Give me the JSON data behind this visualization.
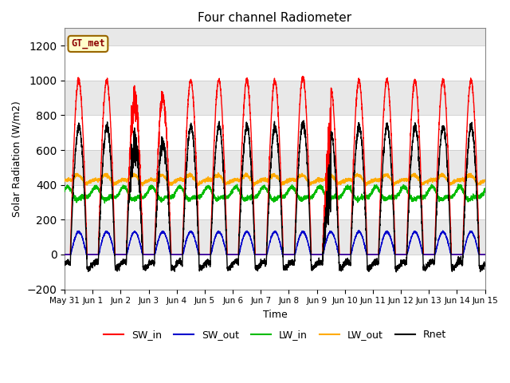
{
  "title": "Four channel Radiometer",
  "xlabel": "Time",
  "ylabel": "Solar Radiation (W/m2)",
  "ylim": [
    -200,
    1300
  ],
  "yticks": [
    -200,
    0,
    200,
    400,
    600,
    800,
    1000,
    1200
  ],
  "n_days": 15,
  "n_points": 4320,
  "SW_in_peak": 1000,
  "SW_out_peak": 130,
  "LW_in_base": 345,
  "LW_in_amp": 30,
  "LW_out_base": 415,
  "LW_out_amp": 50,
  "colors": {
    "SW_in": "#ff0000",
    "SW_out": "#0000cc",
    "LW_in": "#00bb00",
    "LW_out": "#ffaa00",
    "Rnet": "#000000"
  },
  "station_label": "GT_met",
  "station_label_color": "#8B0000",
  "station_box_facecolor": "#ffffcc",
  "station_box_edgecolor": "#996600",
  "plot_bg_light": "#e8e8e8",
  "plot_bg_dark": "#d0d0d0",
  "xtick_labels": [
    "May 31",
    "Jun 1",
    "Jun 2",
    "Jun 3",
    "Jun 4",
    "Jun 5",
    "Jun 6",
    "Jun 7",
    "Jun 8",
    "Jun 9",
    "Jun 10",
    "Jun 11",
    "Jun 12",
    "Jun 13",
    "Jun 14",
    "Jun 15"
  ],
  "linewidth": 1.0
}
